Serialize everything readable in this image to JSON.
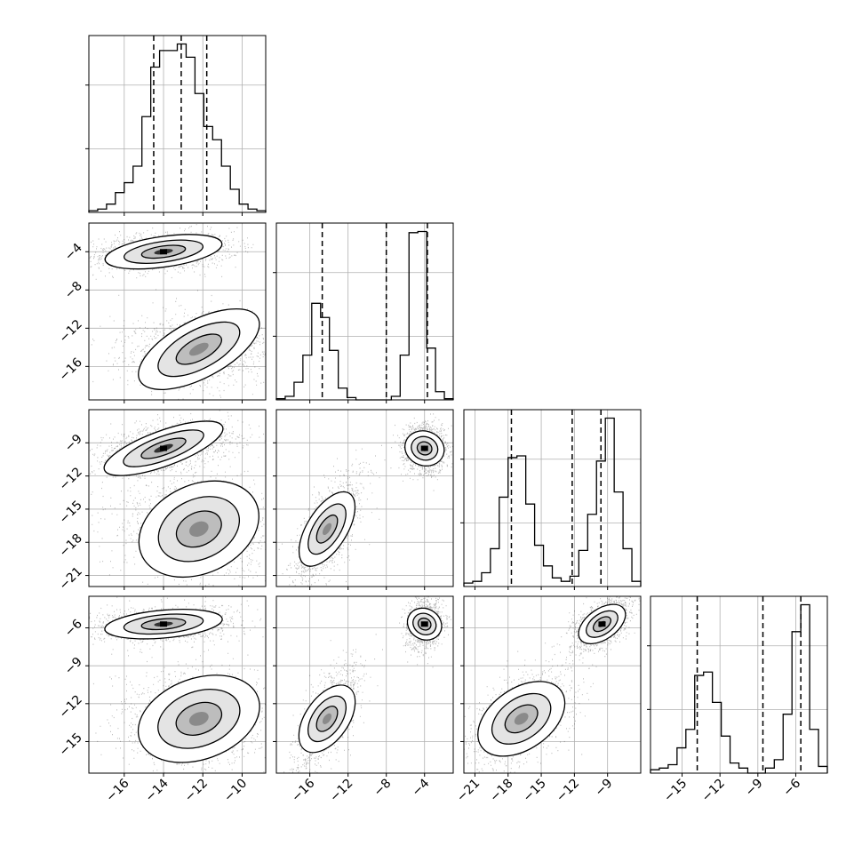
{
  "chart_data": {
    "type": "corner",
    "n_params": 4,
    "grid": true,
    "colors": {
      "line": "#000000",
      "grid": "#b0b0b0",
      "points": "#000000"
    },
    "quantiles": [
      0.16,
      0.5,
      0.84
    ],
    "params": [
      {
        "range": [
          -17.8,
          -8.8
        ],
        "ticks": [
          -16,
          -14,
          -12,
          -10
        ],
        "tick_labels": [
          "−16",
          "−14",
          "−12",
          "−10"
        ],
        "quantile_values": [
          -14.5,
          -13.1,
          -11.8
        ]
      },
      {
        "range": [
          -19.5,
          -1.0
        ],
        "ticks": [
          -16,
          -12,
          -8,
          -4
        ],
        "tick_labels": [
          "−16",
          "−12",
          "−8",
          "−4"
        ],
        "quantile_values": [
          -14.7,
          -8.0,
          -3.7
        ]
      },
      {
        "range": [
          -22.0,
          -6.0
        ],
        "ticks": [
          -21,
          -18,
          -15,
          -12,
          -9
        ],
        "tick_labels": [
          "−21",
          "−18",
          "−15",
          "−12",
          "−9"
        ],
        "quantile_values": [
          -17.7,
          -12.2,
          -9.6
        ]
      },
      {
        "range": [
          -17.5,
          -3.5
        ],
        "ticks": [
          -15,
          -12,
          -9,
          -6
        ],
        "tick_labels": [
          "−15",
          "−12",
          "−9",
          "−6"
        ],
        "quantile_values": [
          -13.8,
          -8.6,
          -5.6
        ]
      }
    ],
    "modes": [
      {
        "weight": 0.5,
        "mean": [
          -14.0,
          -4.0,
          -9.5,
          -5.7
        ],
        "sd": [
          1.0,
          0.7,
          0.7,
          0.5
        ]
      },
      {
        "weight": 0.5,
        "mean": [
          -12.2,
          -14.2,
          -16.8,
          -13.2
        ],
        "sd": [
          1.1,
          1.3,
          1.5,
          1.2
        ]
      }
    ],
    "hist_1d": [
      {
        "bins": 20,
        "values": [
          1,
          2,
          5,
          12,
          18,
          28,
          58,
          88,
          98,
          98,
          102,
          94,
          72,
          52,
          44,
          28,
          14,
          5,
          2,
          1
        ]
      },
      {
        "bins": 20,
        "values": [
          1,
          3,
          15,
          38,
          82,
          70,
          42,
          10,
          2,
          0,
          0,
          0,
          0,
          3,
          38,
          142,
          143,
          44,
          7,
          1
        ]
      },
      {
        "bins": 20,
        "values": [
          2,
          3,
          8,
          22,
          52,
          75,
          76,
          48,
          24,
          12,
          5,
          3,
          6,
          21,
          42,
          73,
          98,
          55,
          22,
          3
        ]
      },
      {
        "bins": 20,
        "values": [
          2,
          3,
          5,
          15,
          26,
          58,
          60,
          42,
          22,
          6,
          3,
          0,
          0,
          3,
          8,
          35,
          84,
          100,
          26,
          4
        ]
      }
    ],
    "pairs": [
      {
        "x": 0,
        "y": 1,
        "modes": [
          {
            "center": [
              -14.0,
              -4.0
            ],
            "rx": 1.5,
            "ry": 0.8,
            "angle": 8,
            "peak": 1.0
          },
          {
            "center": [
              -12.2,
              -14.2
            ],
            "rx": 1.7,
            "ry": 1.5,
            "angle": 28,
            "peak": 0.6
          }
        ]
      },
      {
        "x": 0,
        "y": 2,
        "modes": [
          {
            "center": [
              -14.0,
              -9.5
            ],
            "rx": 1.6,
            "ry": 0.8,
            "angle": 20,
            "peak": 1.0
          },
          {
            "center": [
              -12.2,
              -16.8
            ],
            "rx": 1.6,
            "ry": 2.0,
            "angle": 25,
            "peak": 0.55
          }
        ]
      },
      {
        "x": 0,
        "y": 3,
        "modes": [
          {
            "center": [
              -14.0,
              -5.7
            ],
            "rx": 1.5,
            "ry": 0.55,
            "angle": 5,
            "peak": 1.0
          },
          {
            "center": [
              -12.2,
              -13.2
            ],
            "rx": 1.6,
            "ry": 1.6,
            "angle": 20,
            "peak": 0.6
          }
        ]
      },
      {
        "x": 1,
        "y": 2,
        "modes": [
          {
            "center": [
              -4.0,
              -9.5
            ],
            "rx": 0.9,
            "ry": 0.9,
            "angle": 70,
            "peak": 1.0
          },
          {
            "center": [
              -14.2,
              -16.8
            ],
            "rx": 2.2,
            "ry": 0.9,
            "angle": 58,
            "peak": 0.5
          }
        ]
      },
      {
        "x": 1,
        "y": 3,
        "modes": [
          {
            "center": [
              -4.0,
              -5.7
            ],
            "rx": 0.8,
            "ry": 0.7,
            "angle": 60,
            "peak": 1.0
          },
          {
            "center": [
              -14.2,
              -13.2
            ],
            "rx": 2.0,
            "ry": 0.85,
            "angle": 55,
            "peak": 0.5
          }
        ]
      },
      {
        "x": 2,
        "y": 3,
        "modes": [
          {
            "center": [
              -9.5,
              -5.7
            ],
            "rx": 1.2,
            "ry": 0.6,
            "angle": 35,
            "peak": 1.0
          },
          {
            "center": [
              -16.8,
              -13.2
            ],
            "rx": 2.2,
            "ry": 1.2,
            "angle": 35,
            "peak": 0.55
          }
        ]
      }
    ]
  }
}
